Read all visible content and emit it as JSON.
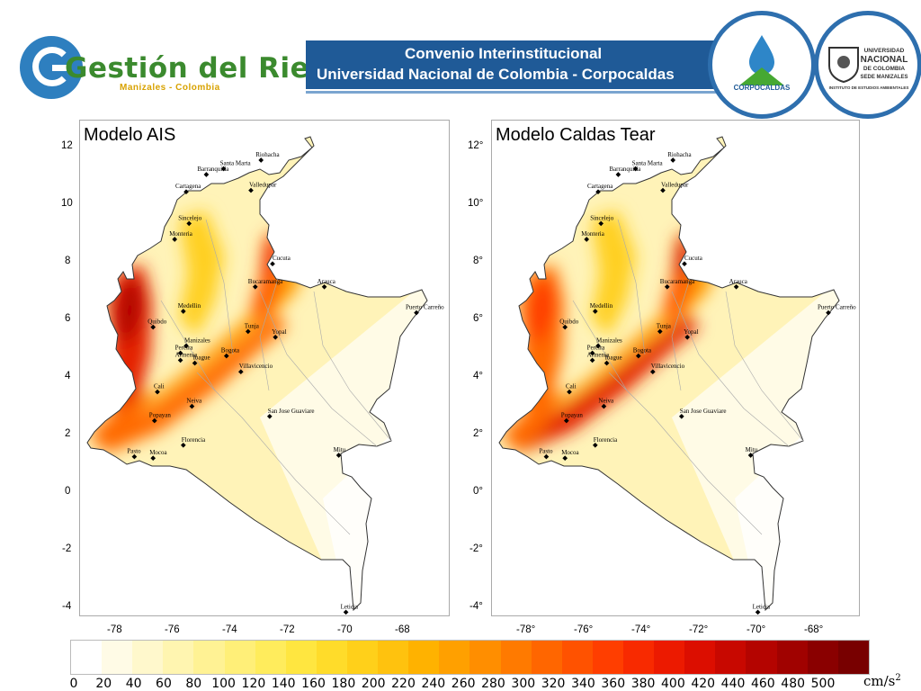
{
  "header": {
    "logo_text": "Gestión del Riesgo",
    "logo_sub": "Manizales - Colombia",
    "banner_line1": "Convenio Interinstitucional",
    "banner_line2": "Universidad Nacional de Colombia - Corpocaldas",
    "corpocaldas_name": "CORPOCALDAS",
    "unal_name_1": "UNIVERSIDAD",
    "unal_name_2": "NACIONAL",
    "unal_name_3": "DE COLOMBIA",
    "unal_sede": "SEDE MANIZALES",
    "unal_institute": "INSTITUTO DE ESTUDIOS AMBIENTALES"
  },
  "maps": [
    {
      "title": "Modelo AIS",
      "yticks": [
        "12",
        "10",
        "8",
        "6",
        "4",
        "2",
        "0",
        "-2",
        "-4"
      ],
      "xticks": [
        "-78",
        "-76",
        "-74",
        "-72",
        "-70",
        "-68"
      ]
    },
    {
      "title": "Modelo Caldas Tear",
      "yticks": [
        "12°",
        "10°",
        "8°",
        "6°",
        "4°",
        "2°",
        "0°",
        "-2°",
        "-4°"
      ],
      "xticks": [
        "-78°",
        "-76°",
        "-74°",
        "-72°",
        "-70°",
        "-68°"
      ]
    }
  ],
  "cities": [
    "Riohacha",
    "Santa Marta",
    "Barranquilla",
    "Cartagena",
    "Valledupar",
    "Sincelejo",
    "Monteria",
    "Cucuta",
    "Arauca",
    "Bucaramanga",
    "Puerto Carreño",
    "Medellin",
    "Quibdo",
    "Tunja",
    "Yopal",
    "Manizales",
    "Pereira",
    "Armenia",
    "Ibague",
    "Bogota",
    "Villavicencio",
    "Cali",
    "Neiva",
    "Popayan",
    "San Jose Guaviare",
    "Florencia",
    "Pasto",
    "Mocoa",
    "Mitu",
    "Leticia"
  ],
  "colorbar": {
    "labels": [
      "0",
      "20",
      "40",
      "60",
      "80",
      "100",
      "120",
      "140",
      "160",
      "180",
      "200",
      "220",
      "240",
      "260",
      "280",
      "300",
      "320",
      "340",
      "360",
      "380",
      "400",
      "420",
      "440",
      "460",
      "480",
      "500"
    ],
    "unit": "cm/s",
    "unit_exp": "2",
    "colors": [
      "#ffffff",
      "#fffbe6",
      "#fff8cc",
      "#fff5b0",
      "#fff294",
      "#ffef78",
      "#ffec5c",
      "#ffe640",
      "#ffdc2a",
      "#ffd01a",
      "#ffc20e",
      "#ffb200",
      "#ffa000",
      "#ff8e00",
      "#ff7a00",
      "#ff6600",
      "#ff5200",
      "#ff3e00",
      "#f82a00",
      "#ec1a00",
      "#dc0e00",
      "#c80800",
      "#b40400",
      "#a00200",
      "#8a0000",
      "#780000"
    ]
  }
}
